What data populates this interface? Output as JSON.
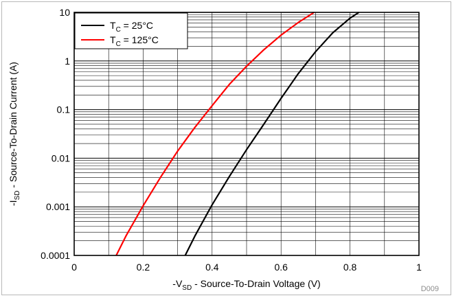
{
  "chart_data": {
    "type": "line",
    "xlabel": {
      "prefix": "-V",
      "sub": "SD",
      "rest": " - Source-To-Drain Voltage (V)"
    },
    "ylabel": {
      "prefix": "-I",
      "sub": "SD",
      "rest": " - Source-To-Drain Current (A)"
    },
    "xlim": [
      0,
      1
    ],
    "ylim": [
      0.0001,
      10
    ],
    "y_scale": "log",
    "x_ticks": [
      "0",
      "0.2",
      "0.4",
      "0.6",
      "0.8",
      "1"
    ],
    "x_tick_values": [
      0,
      0.2,
      0.4,
      0.6,
      0.8,
      1
    ],
    "y_ticks": [
      "0.0001",
      "0.001",
      "0.01",
      "0.1",
      "1",
      "10"
    ],
    "y_tick_values": [
      0.0001,
      0.001,
      0.01,
      0.1,
      1,
      10
    ],
    "grid": true,
    "legend_position": "top-left",
    "figure_id": "D009",
    "series": [
      {
        "legend": {
          "prefix": "T",
          "sub": "C",
          "rest": " = 25°C"
        },
        "color": "#000000",
        "x": [
          0.322,
          0.35,
          0.4,
          0.45,
          0.5,
          0.55,
          0.6,
          0.65,
          0.7,
          0.75,
          0.8,
          0.826
        ],
        "y": [
          0.0001,
          0.00025,
          0.0011,
          0.0042,
          0.015,
          0.05,
          0.17,
          0.55,
          1.55,
          3.8,
          7.6,
          10
        ]
      },
      {
        "legend": {
          "prefix": "T",
          "sub": "C",
          "rest": " = 125°C"
        },
        "color": "#ff0000",
        "x": [
          0.122,
          0.15,
          0.2,
          0.25,
          0.3,
          0.35,
          0.4,
          0.45,
          0.5,
          0.55,
          0.6,
          0.65,
          0.696
        ],
        "y": [
          0.0001,
          0.00025,
          0.00105,
          0.004,
          0.014,
          0.043,
          0.12,
          0.33,
          0.78,
          1.7,
          3.4,
          6.2,
          10
        ]
      }
    ]
  }
}
